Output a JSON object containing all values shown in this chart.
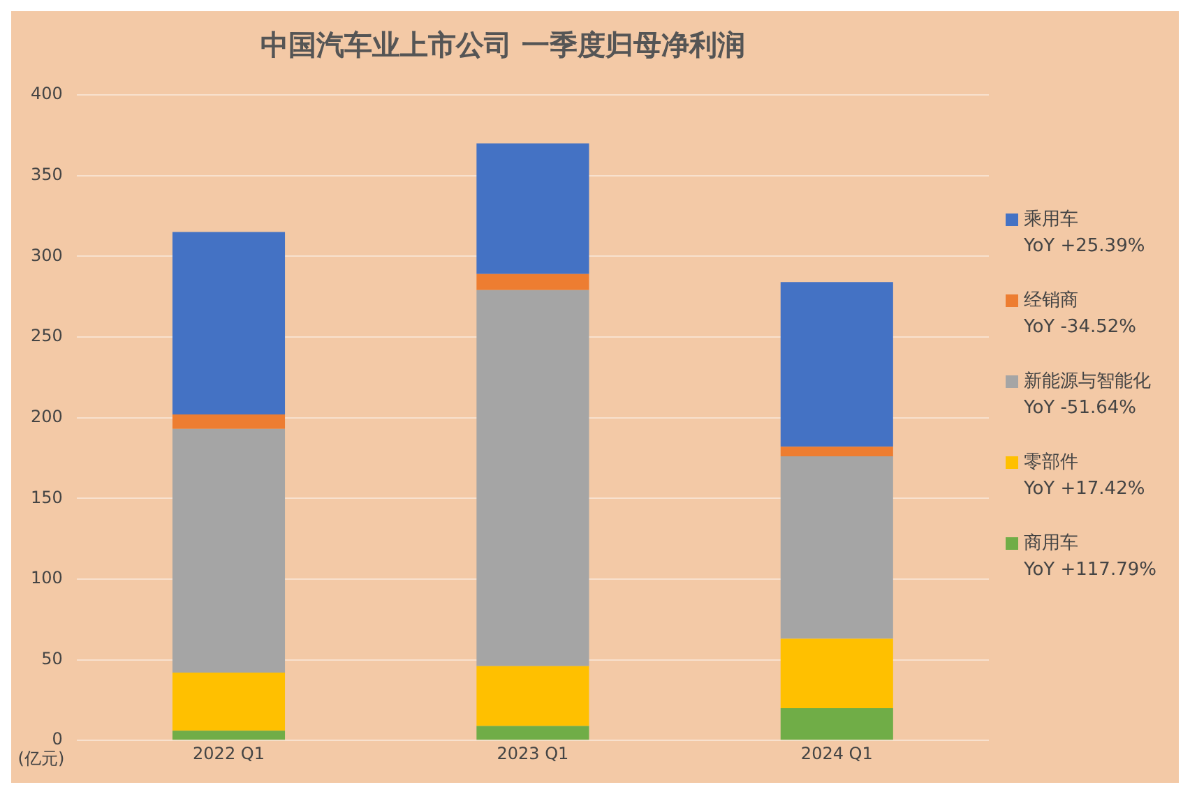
{
  "chart_data": {
    "type": "bar",
    "title": "中国汽车业上市公司 一季度归母净利润",
    "ylabel": "(亿元)",
    "categories": [
      "2022 Q1",
      "2023 Q1",
      "2024 Q1"
    ],
    "stacked": true,
    "legend": "right",
    "grid": "y",
    "ylim": [
      0,
      400
    ],
    "yticks": [
      0,
      50,
      100,
      150,
      200,
      250,
      300,
      350,
      400
    ],
    "series": [
      {
        "name": "商用车",
        "color": "#70ad47",
        "values": [
          6,
          9,
          20
        ]
      },
      {
        "name": "零部件",
        "color": "#ffc000",
        "values": [
          36,
          37,
          43
        ]
      },
      {
        "name": "新能源与智能化",
        "color": "#a5a5a5",
        "values": [
          151,
          233,
          113
        ]
      },
      {
        "name": "经销商",
        "color": "#ed7d31",
        "values": [
          9,
          10,
          6
        ]
      },
      {
        "name": "乘用车",
        "color": "#4472c4",
        "values": [
          113,
          81,
          102
        ]
      }
    ],
    "annotations": [
      "YoY +117.79%",
      "YoY +17.42%",
      "YoY -51.64%",
      "YoY -34.52%",
      "YoY +25.39%"
    ]
  }
}
